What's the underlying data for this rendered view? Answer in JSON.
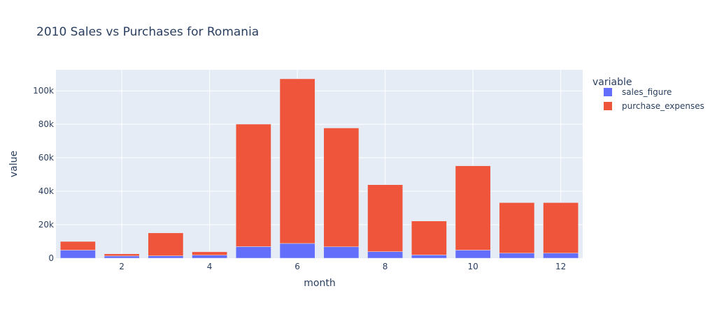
{
  "chart_data": {
    "type": "bar",
    "barmode": "stack",
    "title": "2010 Sales vs Purchases for Romania",
    "xlabel": "month",
    "ylabel": "value",
    "categories": [
      1,
      2,
      3,
      4,
      5,
      6,
      7,
      8,
      9,
      10,
      11,
      12
    ],
    "x_ticks": [
      2,
      4,
      6,
      8,
      10,
      12
    ],
    "x_tick_labels": [
      "2",
      "4",
      "6",
      "8",
      "10",
      "12"
    ],
    "y_ticks": [
      0,
      20000,
      40000,
      60000,
      80000,
      100000
    ],
    "y_tick_labels": [
      "0",
      "20k",
      "40k",
      "60k",
      "80k",
      "100k"
    ],
    "ylim": [
      0,
      112600
    ],
    "xlim": [
      0.5,
      12.5
    ],
    "grid": true,
    "legend_title": "variable",
    "legend_position": "right",
    "series": [
      {
        "name": "sales_figure",
        "color": "#636efa",
        "values": [
          4800,
          1300,
          1400,
          1800,
          6900,
          8800,
          6800,
          3900,
          1900,
          4800,
          3000,
          3000
        ]
      },
      {
        "name": "purchase_expenses",
        "color": "#ef553b",
        "values": [
          5200,
          1300,
          13700,
          2000,
          73200,
          98400,
          71000,
          40000,
          20300,
          50400,
          30200,
          30200
        ]
      }
    ],
    "plot_background": "#e5ecf6",
    "grid_color": "#ffffff"
  }
}
